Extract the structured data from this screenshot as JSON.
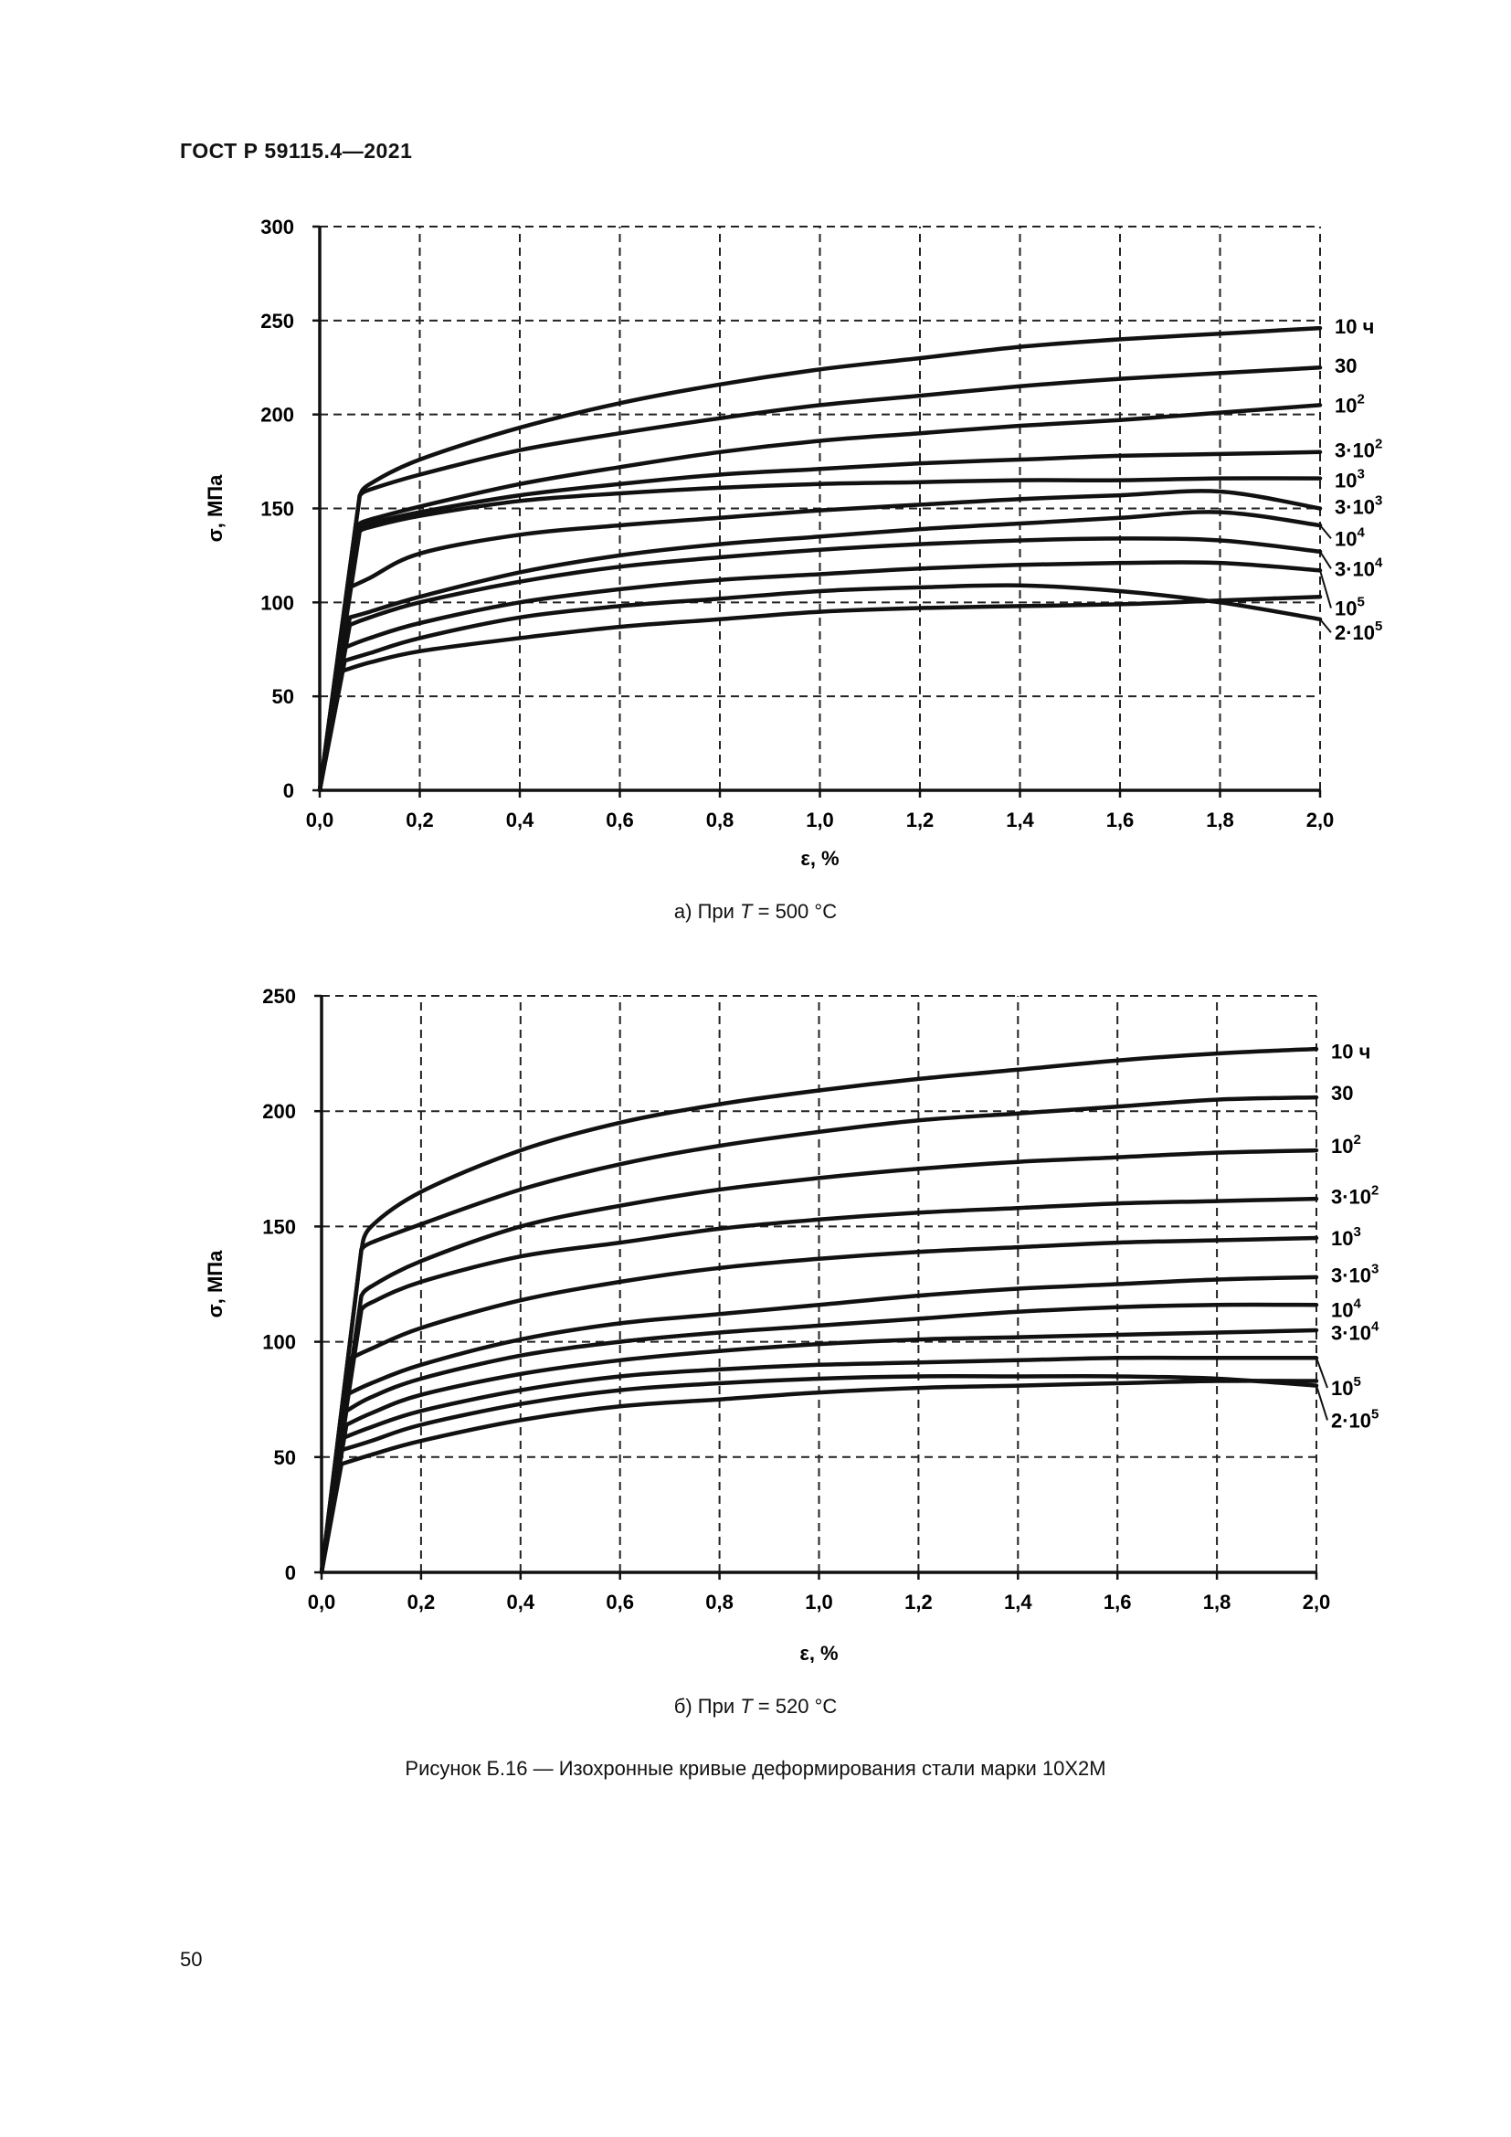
{
  "header": {
    "doc_id": "ГОСТ Р 59115.4—2021"
  },
  "chart_data": [
    {
      "type": "line",
      "caption_prefix": "а) При ",
      "caption_var": "T",
      "caption_suffix": " = 500 °C",
      "xlabel": "ε, %",
      "ylabel": "σ, МПа",
      "xlim": [
        0,
        2.0
      ],
      "ylim": [
        0,
        300
      ],
      "xticks": [
        0,
        0.2,
        0.4,
        0.6,
        0.8,
        1.0,
        1.2,
        1.4,
        1.6,
        1.8,
        2.0
      ],
      "xtick_labels": [
        "0,0",
        "0,2",
        "0,4",
        "0,6",
        "0,8",
        "1,0",
        "1,2",
        "1,4",
        "1,6",
        "1,8",
        "2,0"
      ],
      "yticks": [
        0,
        50,
        100,
        150,
        200,
        250,
        300
      ],
      "ytick_labels": [
        "0",
        "50",
        "100",
        "150",
        "200",
        "250",
        "300"
      ],
      "grid": true,
      "series": [
        {
          "name": "10 ч",
          "label": {
            "base": "10 ч",
            "sup": ""
          },
          "label_sigma": 247,
          "x": [
            0,
            0.08,
            0.1,
            0.2,
            0.4,
            0.6,
            0.8,
            1.0,
            1.2,
            1.4,
            1.6,
            1.8,
            2.0
          ],
          "y": [
            0,
            157,
            163,
            176,
            193,
            206,
            216,
            224,
            230,
            236,
            240,
            243,
            246
          ]
        },
        {
          "name": "30",
          "label": {
            "base": "30",
            "sup": ""
          },
          "label_sigma": 226,
          "x": [
            0,
            0.08,
            0.1,
            0.2,
            0.4,
            0.6,
            0.8,
            1.0,
            1.2,
            1.4,
            1.6,
            1.8,
            2.0
          ],
          "y": [
            0,
            157,
            160,
            168,
            181,
            190,
            198,
            205,
            210,
            215,
            219,
            222,
            225
          ]
        },
        {
          "name": "10^2",
          "label": {
            "base": "10",
            "sup": "2"
          },
          "label_sigma": 205,
          "x": [
            0,
            0.08,
            0.1,
            0.2,
            0.4,
            0.6,
            0.8,
            1.0,
            1.2,
            1.4,
            1.6,
            1.8,
            2.0
          ],
          "y": [
            0,
            142,
            144,
            151,
            163,
            172,
            180,
            186,
            190,
            194,
            197,
            201,
            205
          ]
        },
        {
          "name": "3·10^2",
          "label": {
            "base": "3·10",
            "sup": "2"
          },
          "label_sigma": 181,
          "x": [
            0,
            0.08,
            0.1,
            0.2,
            0.4,
            0.6,
            0.8,
            1.0,
            1.2,
            1.4,
            1.6,
            1.8,
            2.0
          ],
          "y": [
            0,
            140,
            142,
            148,
            157,
            163,
            168,
            171,
            174,
            176,
            178,
            179,
            180
          ]
        },
        {
          "name": "10^3",
          "label": {
            "base": "10",
            "sup": "3"
          },
          "label_sigma": 165,
          "x": [
            0,
            0.08,
            0.1,
            0.2,
            0.4,
            0.6,
            0.8,
            1.0,
            1.2,
            1.4,
            1.6,
            1.8,
            2.0
          ],
          "y": [
            0,
            138,
            140,
            146,
            154,
            158,
            161,
            163,
            164,
            165,
            165,
            166,
            166
          ]
        },
        {
          "name": "3·10^3",
          "label": {
            "base": "3·10",
            "sup": "3"
          },
          "label_sigma": 151,
          "x": [
            0,
            0.06,
            0.1,
            0.2,
            0.4,
            0.6,
            0.8,
            1.0,
            1.2,
            1.4,
            1.6,
            1.8,
            2.0
          ],
          "y": [
            0,
            108,
            113,
            126,
            136,
            141,
            145,
            149,
            152,
            155,
            157,
            159,
            150
          ]
        },
        {
          "name": "10^4",
          "label": {
            "base": "10",
            "sup": "4"
          },
          "label_sigma": 134,
          "x": [
            0,
            0.06,
            0.1,
            0.2,
            0.4,
            0.6,
            0.8,
            1.0,
            1.2,
            1.4,
            1.6,
            1.8,
            2.0
          ],
          "y": [
            0,
            92,
            95,
            103,
            116,
            125,
            131,
            135,
            139,
            142,
            145,
            148,
            141
          ]
        },
        {
          "name": "3·10^4",
          "label": {
            "base": "3·10",
            "sup": "4"
          },
          "label_sigma": 118,
          "x": [
            0,
            0.06,
            0.1,
            0.2,
            0.4,
            0.6,
            0.8,
            1.0,
            1.2,
            1.4,
            1.6,
            1.8,
            2.0
          ],
          "y": [
            0,
            88,
            92,
            100,
            111,
            119,
            124,
            128,
            131,
            133,
            134,
            133,
            127
          ]
        },
        {
          "name": "10^5",
          "label": {
            "base": "10",
            "sup": "5"
          },
          "label_sigma": 97,
          "x": [
            0,
            0.05,
            0.1,
            0.2,
            0.4,
            0.6,
            0.8,
            1.0,
            1.2,
            1.4,
            1.6,
            1.8,
            2.0
          ],
          "y": [
            0,
            76,
            81,
            89,
            100,
            107,
            112,
            115,
            118,
            120,
            121,
            121,
            117
          ]
        },
        {
          "name": "2·10^5",
          "label": {
            "base": "2·10",
            "sup": "5"
          },
          "label_sigma": 84,
          "x": [
            0,
            0.05,
            0.1,
            0.2,
            0.4,
            0.6,
            0.8,
            1.0,
            1.2,
            1.4,
            1.6,
            1.8,
            2.0
          ],
          "y": [
            0,
            69,
            73,
            81,
            92,
            98,
            102,
            106,
            108,
            109,
            106,
            100,
            91
          ]
        },
        {
          "name": "",
          "label": {
            "base": "",
            "sup": ""
          },
          "label_sigma": null,
          "x": [
            0,
            0.04,
            0.1,
            0.2,
            0.4,
            0.6,
            0.8,
            1.0,
            1.2,
            1.4,
            1.6,
            1.8,
            2.0
          ],
          "y": [
            0,
            63,
            68,
            74,
            81,
            87,
            91,
            95,
            97,
            98,
            99,
            101,
            103
          ]
        }
      ]
    },
    {
      "type": "line",
      "caption_prefix": "б) При ",
      "caption_var": "T",
      "caption_suffix": " = 520 °C",
      "xlabel": "ε, %",
      "ylabel": "σ, МПа",
      "xlim": [
        0,
        2.0
      ],
      "ylim": [
        0,
        250
      ],
      "xticks": [
        0,
        0.2,
        0.4,
        0.6,
        0.8,
        1.0,
        1.2,
        1.4,
        1.6,
        1.8,
        2.0
      ],
      "xtick_labels": [
        "0,0",
        "0,2",
        "0,4",
        "0,6",
        "0,8",
        "1,0",
        "1,2",
        "1,4",
        "1,6",
        "1,8",
        "2,0"
      ],
      "yticks": [
        0,
        50,
        100,
        150,
        200,
        250
      ],
      "ytick_labels": [
        "0",
        "50",
        "100",
        "150",
        "200",
        "250"
      ],
      "grid": true,
      "series": [
        {
          "name": "10 ч",
          "label": {
            "base": "10 ч",
            "sup": ""
          },
          "label_sigma": 226,
          "x": [
            0,
            0.08,
            0.1,
            0.2,
            0.4,
            0.6,
            0.8,
            1.0,
            1.2,
            1.4,
            1.6,
            1.8,
            2.0
          ],
          "y": [
            0,
            140,
            150,
            165,
            183,
            195,
            203,
            209,
            214,
            218,
            222,
            225,
            227
          ]
        },
        {
          "name": "30",
          "label": {
            "base": "30",
            "sup": ""
          },
          "label_sigma": 208,
          "x": [
            0,
            0.08,
            0.1,
            0.2,
            0.4,
            0.6,
            0.8,
            1.0,
            1.2,
            1.4,
            1.6,
            1.8,
            2.0
          ],
          "y": [
            0,
            140,
            143,
            151,
            166,
            177,
            185,
            191,
            196,
            199,
            202,
            205,
            206
          ]
        },
        {
          "name": "10^2",
          "label": {
            "base": "10",
            "sup": "2"
          },
          "label_sigma": 185,
          "x": [
            0,
            0.08,
            0.1,
            0.2,
            0.4,
            0.6,
            0.8,
            1.0,
            1.2,
            1.4,
            1.6,
            1.8,
            2.0
          ],
          "y": [
            0,
            120,
            124,
            135,
            150,
            159,
            166,
            171,
            175,
            178,
            180,
            182,
            183
          ]
        },
        {
          "name": "3·10^2",
          "label": {
            "base": "3·10",
            "sup": "2"
          },
          "label_sigma": 163,
          "x": [
            0,
            0.08,
            0.1,
            0.2,
            0.4,
            0.6,
            0.8,
            1.0,
            1.2,
            1.4,
            1.6,
            1.8,
            2.0
          ],
          "y": [
            0,
            114,
            117,
            126,
            137,
            143,
            149,
            153,
            156,
            158,
            160,
            161,
            162
          ]
        },
        {
          "name": "10^3",
          "label": {
            "base": "10",
            "sup": "3"
          },
          "label_sigma": 145,
          "x": [
            0,
            0.06,
            0.1,
            0.2,
            0.4,
            0.6,
            0.8,
            1.0,
            1.2,
            1.4,
            1.6,
            1.8,
            2.0
          ],
          "y": [
            0,
            93,
            97,
            106,
            118,
            126,
            132,
            136,
            139,
            141,
            143,
            144,
            145
          ]
        },
        {
          "name": "3·10^3",
          "label": {
            "base": "3·10",
            "sup": "3"
          },
          "label_sigma": 129,
          "x": [
            0,
            0.05,
            0.1,
            0.2,
            0.4,
            0.6,
            0.8,
            1.0,
            1.2,
            1.4,
            1.6,
            1.8,
            2.0
          ],
          "y": [
            0,
            77,
            82,
            90,
            101,
            108,
            112,
            116,
            120,
            123,
            125,
            127,
            128
          ]
        },
        {
          "name": "10^4",
          "label": {
            "base": "10",
            "sup": "4"
          },
          "label_sigma": 114,
          "x": [
            0,
            0.05,
            0.1,
            0.2,
            0.4,
            0.6,
            0.8,
            1.0,
            1.2,
            1.4,
            1.6,
            1.8,
            2.0
          ],
          "y": [
            0,
            70,
            76,
            84,
            94,
            100,
            104,
            107,
            110,
            113,
            115,
            116,
            116
          ]
        },
        {
          "name": "3·10^4",
          "label": {
            "base": "3·10",
            "sup": "4"
          },
          "label_sigma": 104,
          "x": [
            0,
            0.05,
            0.1,
            0.2,
            0.4,
            0.6,
            0.8,
            1.0,
            1.2,
            1.4,
            1.6,
            1.8,
            2.0
          ],
          "y": [
            0,
            64,
            69,
            77,
            86,
            92,
            96,
            99,
            101,
            102,
            103,
            104,
            105
          ]
        },
        {
          "name": "10^5",
          "label": {
            "base": "10",
            "sup": "5"
          },
          "label_sigma": 80,
          "x": [
            0,
            0.04,
            0.1,
            0.2,
            0.4,
            0.6,
            0.8,
            1.0,
            1.2,
            1.4,
            1.6,
            1.8,
            2.0
          ],
          "y": [
            0,
            58,
            63,
            70,
            79,
            85,
            88,
            90,
            91,
            92,
            93,
            93,
            93
          ]
        },
        {
          "name": "2·10^5",
          "label": {
            "base": "2·10",
            "sup": "5"
          },
          "label_sigma": 66,
          "x": [
            0,
            0.04,
            0.1,
            0.2,
            0.4,
            0.6,
            0.8,
            1.0,
            1.2,
            1.4,
            1.6,
            1.8,
            2.0
          ],
          "y": [
            0,
            53,
            57,
            64,
            73,
            79,
            82,
            84,
            85,
            85,
            85,
            84,
            81
          ]
        },
        {
          "name": "",
          "label": {
            "base": "",
            "sup": ""
          },
          "label_sigma": null,
          "x": [
            0,
            0.04,
            0.1,
            0.2,
            0.4,
            0.6,
            0.8,
            1.0,
            1.2,
            1.4,
            1.6,
            1.8,
            2.0
          ],
          "y": [
            0,
            47,
            51,
            57,
            66,
            72,
            75,
            78,
            80,
            81,
            82,
            83,
            83
          ]
        }
      ]
    }
  ],
  "figure_title": "Рисунок Б.16 — Изохронные кривые деформирования стали марки 10Х2М",
  "page_number": "50"
}
